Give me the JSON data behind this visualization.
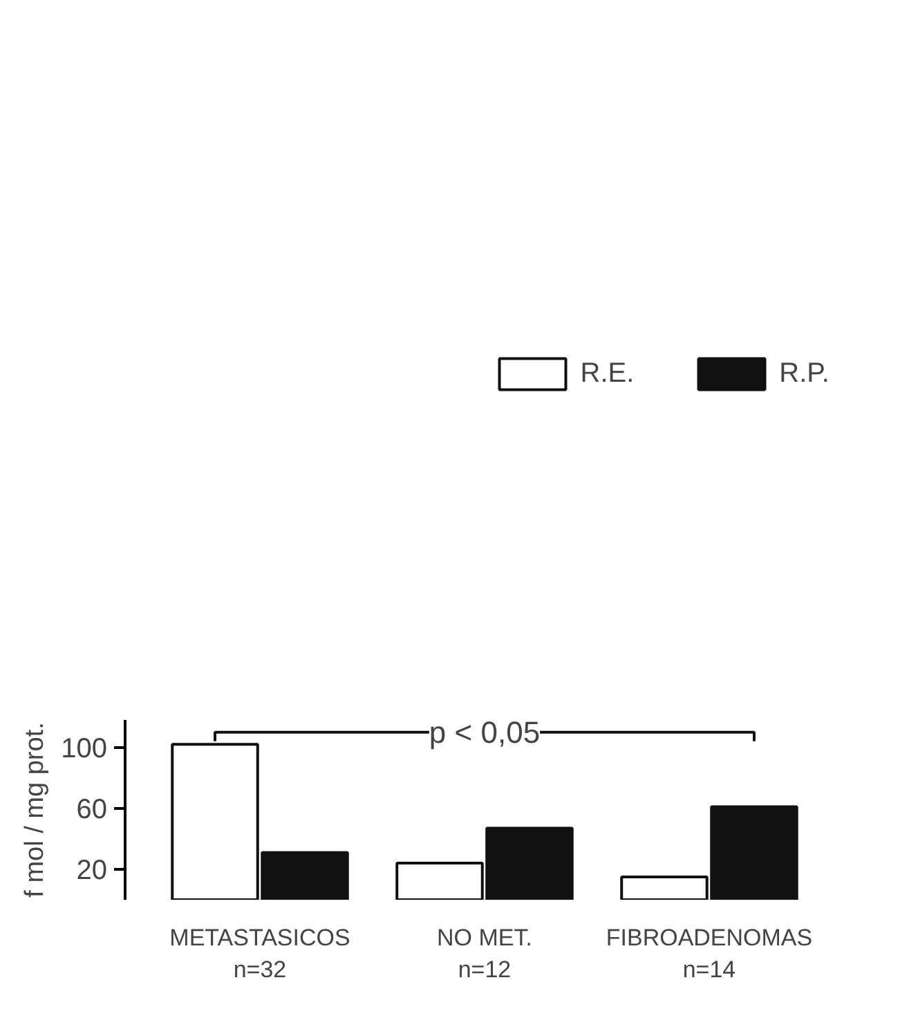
{
  "chart_data": {
    "type": "bar",
    "ylabel": "f mol / mg prot.",
    "categories": [
      "METASTASICOS\nn=32",
      "NO MET.\nn=12",
      "FIBROADENOMAS\nn=14"
    ],
    "series": [
      {
        "name": "R.E.",
        "color": "#ffffff",
        "values": [
          102,
          24,
          15
        ]
      },
      {
        "name": "R.P.",
        "color": "#111111",
        "values": [
          31,
          47,
          61
        ]
      }
    ],
    "ylim": [
      0,
      118
    ],
    "yticks": [
      20,
      60,
      100
    ],
    "annotations": [
      "p < 0,05"
    ],
    "grid": false,
    "legend": "top"
  }
}
